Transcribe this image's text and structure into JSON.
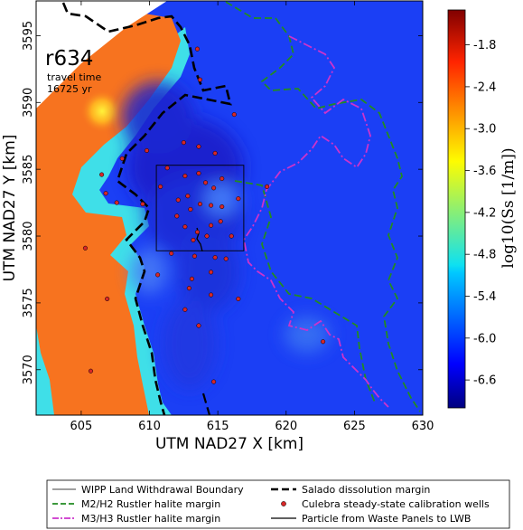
{
  "chart_data": {
    "type": "heatmap",
    "title": "",
    "annotation": {
      "model": "r634",
      "line1": "travel time",
      "line2": "16725 yr"
    },
    "xlabel": "UTM NAD27 X [km]",
    "ylabel": "UTM NAD27 Y [km]",
    "xlim": [
      601.7,
      630.0
    ],
    "ylim": [
      3566.6,
      3597.6
    ],
    "x_ticks": [
      "605",
      "610",
      "615",
      "620",
      "625",
      "630"
    ],
    "y_ticks": [
      "3570",
      "3575",
      "3580",
      "3585",
      "3590",
      "3595"
    ],
    "colorbar": {
      "label": "log10(Ss [1/m])",
      "range": [
        -7.0,
        -1.3
      ],
      "ticks": [
        "-1.8",
        "-2.4",
        "-3.0",
        "-3.6",
        "-4.2",
        "-4.8",
        "-5.4",
        "-6.0",
        "-6.6"
      ]
    },
    "wipp_boundary": {
      "x": [
        610.5,
        616.9
      ],
      "y": [
        3578.9,
        3585.3
      ]
    },
    "wells": [
      [
        613.5,
        3594.0
      ],
      [
        613.7,
        3591.7
      ],
      [
        616.2,
        3589.1
      ],
      [
        612.5,
        3587.0
      ],
      [
        609.8,
        3586.4
      ],
      [
        608.0,
        3585.8
      ],
      [
        606.8,
        3583.2
      ],
      [
        606.5,
        3584.6
      ],
      [
        607.6,
        3582.5
      ],
      [
        611.3,
        3585.1
      ],
      [
        610.8,
        3583.7
      ],
      [
        609.5,
        3582.4
      ],
      [
        612.1,
        3582.7
      ],
      [
        612.8,
        3583.0
      ],
      [
        612.6,
        3584.5
      ],
      [
        613.6,
        3584.7
      ],
      [
        614.1,
        3584.0
      ],
      [
        614.7,
        3583.6
      ],
      [
        613.0,
        3582.0
      ],
      [
        613.7,
        3582.4
      ],
      [
        614.5,
        3582.3
      ],
      [
        612.0,
        3581.5
      ],
      [
        612.6,
        3580.7
      ],
      [
        613.5,
        3580.3
      ],
      [
        614.2,
        3580.0
      ],
      [
        614.5,
        3580.8
      ],
      [
        615.2,
        3581.1
      ],
      [
        614.8,
        3578.4
      ],
      [
        611.6,
        3578.7
      ],
      [
        613.3,
        3578.5
      ],
      [
        614.5,
        3577.3
      ],
      [
        615.6,
        3578.3
      ],
      [
        610.6,
        3577.1
      ],
      [
        613.1,
        3576.8
      ],
      [
        616.5,
        3575.3
      ],
      [
        618.6,
        3583.7
      ],
      [
        622.7,
        3572.1
      ],
      [
        615.3,
        3584.3
      ],
      [
        616.5,
        3582.8
      ],
      [
        614.8,
        3586.2
      ],
      [
        613.6,
        3586.7
      ],
      [
        614.5,
        3575.6
      ],
      [
        612.6,
        3574.5
      ],
      [
        613.6,
        3573.3
      ],
      [
        614.7,
        3569.1
      ],
      [
        605.3,
        3579.1
      ],
      [
        606.9,
        3575.3
      ],
      [
        605.7,
        3569.9
      ],
      [
        615.3,
        3582.2
      ],
      [
        616.0,
        3580.0
      ],
      [
        612.9,
        3576.1
      ],
      [
        613.2,
        3579.7
      ]
    ],
    "legend": [
      {
        "label": "WIPP Land Withdrawal Boundary",
        "style": "solid-thin",
        "color": "#000000"
      },
      {
        "label": "Salado dissolution margin",
        "style": "dashed-thick",
        "color": "#000000"
      },
      {
        "label": "M2/H2 Rustler halite margin",
        "style": "dashed",
        "color": "#228b22"
      },
      {
        "label": "Culebra steady-state calibration wells",
        "style": "dot",
        "color": "#d62728"
      },
      {
        "label": "M3/H3 Rustler halite margin",
        "style": "dashdot",
        "color": "#cc33cc"
      },
      {
        "label": "Particle from Waste Panels to LWB",
        "style": "solid",
        "color": "#000000"
      }
    ],
    "colors": {
      "background_field": "#1b3ff5",
      "low_field": "#1a1ec8",
      "cyan_zone": "#3fdfe8",
      "orange_zone": "#f7731f",
      "hot_spot": "#fed835"
    }
  }
}
